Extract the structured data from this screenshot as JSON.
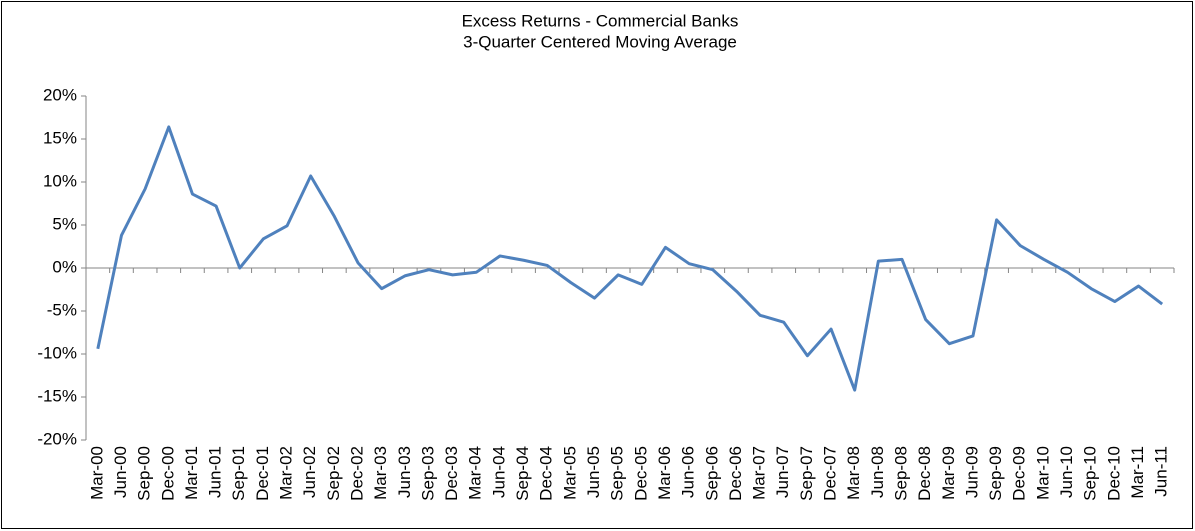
{
  "chart_data": {
    "type": "line",
    "title": "Excess Returns - Commercial Banks",
    "subtitle": "3-Quarter Centered Moving Average",
    "categories": [
      "Mar-00",
      "Jun-00",
      "Sep-00",
      "Dec-00",
      "Mar-01",
      "Jun-01",
      "Sep-01",
      "Dec-01",
      "Mar-02",
      "Jun-02",
      "Sep-02",
      "Dec-02",
      "Mar-03",
      "Jun-03",
      "Sep-03",
      "Dec-03",
      "Mar-04",
      "Jun-04",
      "Sep-04",
      "Dec-04",
      "Mar-05",
      "Jun-05",
      "Sep-05",
      "Dec-05",
      "Mar-06",
      "Jun-06",
      "Sep-06",
      "Dec-06",
      "Mar-07",
      "Jun-07",
      "Sep-07",
      "Dec-07",
      "Mar-08",
      "Jun-08",
      "Sep-08",
      "Dec-08",
      "Mar-09",
      "Jun-09",
      "Sep-09",
      "Dec-09",
      "Mar-10",
      "Jun-10",
      "Sep-10",
      "Dec-10",
      "Mar-11",
      "Jun-11"
    ],
    "values": [
      -9.4,
      3.8,
      9.2,
      16.4,
      8.6,
      7.2,
      0,
      3.4,
      4.9,
      10.7,
      6.0,
      0.6,
      -2.4,
      -0.9,
      -0.2,
      -0.8,
      -0.5,
      1.4,
      0.9,
      0.3,
      -1.7,
      -3.5,
      -0.8,
      -1.9,
      2.4,
      0.5,
      -0.2,
      -2.7,
      -5.5,
      -6.3,
      -10.2,
      -7.1,
      -14.2,
      0.8,
      1.0,
      -6.0,
      -8.8,
      -7.9,
      5.6,
      2.6,
      1.0,
      -0.5,
      -2.4,
      -3.9,
      -2.1,
      -4.2
    ],
    "color": "#4f81bd",
    "ylim": [
      -20,
      20
    ],
    "yticks": [
      {
        "value": -20,
        "label": "-20%"
      },
      {
        "value": -15,
        "label": "-15%"
      },
      {
        "value": -10,
        "label": "-10%"
      },
      {
        "value": -5,
        "label": "-5%"
      },
      {
        "value": 0,
        "label": "0%"
      },
      {
        "value": 5,
        "label": "5%"
      },
      {
        "value": 10,
        "label": "10%"
      },
      {
        "value": 15,
        "label": "15%"
      },
      {
        "value": 20,
        "label": "20%"
      }
    ]
  }
}
